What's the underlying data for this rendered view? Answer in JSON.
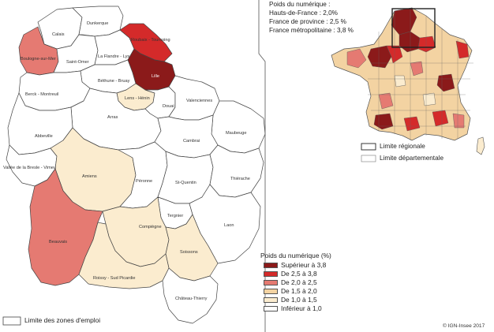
{
  "inset": {
    "title": "Poids du numérique :",
    "lines": [
      "Hauts-de-France : 2,0%",
      "France de province : 2,5 %",
      "France métropolitaine : 3,8 %"
    ],
    "legend_regional": "Limite régionale",
    "legend_departmental": "Limite départementale"
  },
  "legend": {
    "title": "Poids du numérique  (%)",
    "classes": [
      {
        "label": "Supérieur à 3,8",
        "color": "#8b1a1a"
      },
      {
        "label": "De 2,5 à 3,8",
        "color": "#d42a2a"
      },
      {
        "label": "De 2,0 à 2,5",
        "color": "#e57a72"
      },
      {
        "label": "De 1,5 à 2,0",
        "color": "#f3d3a2"
      },
      {
        "label": "De 1,0 à 1,5",
        "color": "#fbeccf"
      },
      {
        "label": "Inférieur à 1,0",
        "color": "#ffffff"
      }
    ]
  },
  "zones_legend": "Limite des zones d'emploi",
  "credit": "© IGN-Insee 2017",
  "zones": {
    "calais": {
      "name": "Calais",
      "class": 5
    },
    "dunkerque": {
      "name": "Dunkerque",
      "class": 5
    },
    "boulogne": {
      "name": "Boulogne-sur-Mer",
      "class": 2
    },
    "saint_omer": {
      "name": "Saint-Omer",
      "class": 5
    },
    "flandre_lys": {
      "name": "La Flandre - Lys",
      "class": 5
    },
    "roubaix": {
      "name": "Roubaix - Tourcoing",
      "class": 1
    },
    "lille": {
      "name": "Lille",
      "class": 0
    },
    "bethune": {
      "name": "Béthune - Bruay",
      "class": 5
    },
    "berck": {
      "name": "Berck - Montreuil",
      "class": 5
    },
    "lens": {
      "name": "Lens - Hénin",
      "class": 4
    },
    "douai": {
      "name": "Douai",
      "class": 5
    },
    "valenciennes": {
      "name": "Valenciennes",
      "class": 5
    },
    "arras": {
      "name": "Arras",
      "class": 5
    },
    "abbeville": {
      "name": "Abbeville",
      "class": 5
    },
    "maubeuge": {
      "name": "Maubeuge",
      "class": 5
    },
    "cambrai": {
      "name": "Cambrai",
      "class": 5
    },
    "vallee_bresle": {
      "name": "Vallée de la Bresle - Vimeu",
      "class": 5
    },
    "amiens": {
      "name": "Amiens",
      "class": 4
    },
    "peronne": {
      "name": "Péronne",
      "class": 5
    },
    "st_quentin": {
      "name": "St-Quentin",
      "class": 5
    },
    "thierache": {
      "name": "Thiérache",
      "class": 5
    },
    "beauvais": {
      "name": "Beauvais",
      "class": 2
    },
    "tergnier": {
      "name": "Tergnier",
      "class": 5
    },
    "laon": {
      "name": "Laon",
      "class": 5
    },
    "compiegne": {
      "name": "Compiègne",
      "class": 4
    },
    "soissons": {
      "name": "Soissons",
      "class": 4
    },
    "roissy": {
      "name": "Roissy - Sud Picardie",
      "class": 4
    },
    "chateau_thierry": {
      "name": "Château-Thierry",
      "class": 5
    }
  }
}
